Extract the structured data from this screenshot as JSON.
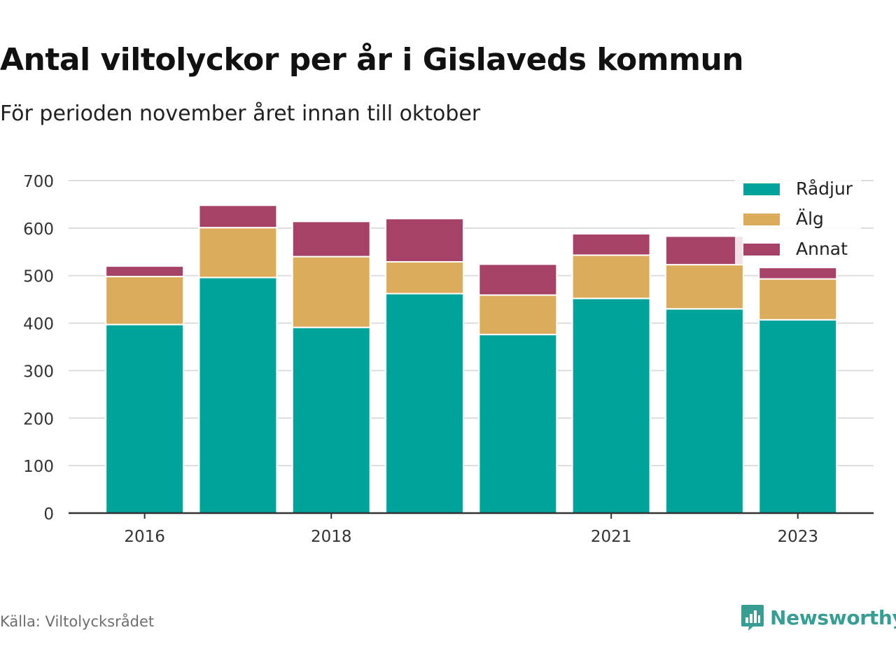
{
  "title": "Antal viltolyckor per år i Gislaveds kommun",
  "subtitle": "För perioden november året innan till oktober",
  "source": "Källa: Viltolycksrådet",
  "brand": {
    "name": "Newsworthy",
    "icon": "newsworthy-logo-icon",
    "color": "#3a9d93"
  },
  "chart_data": {
    "type": "bar",
    "stacked": true,
    "categories": [
      "2016",
      "2017",
      "2018",
      "2019",
      "2020",
      "2021",
      "2022",
      "2023"
    ],
    "x_tick_labels": [
      "2016",
      "",
      "2018",
      "",
      "",
      "2021",
      "",
      "2023"
    ],
    "series": [
      {
        "name": "Rådjur",
        "color": "#00a39a",
        "values": [
          397,
          496,
          391,
          462,
          376,
          452,
          430,
          407
        ]
      },
      {
        "name": "Älg",
        "color": "#dbac5b",
        "values": [
          101,
          105,
          149,
          67,
          83,
          91,
          93,
          86
        ]
      },
      {
        "name": "Annat",
        "color": "#a64167",
        "values": [
          22,
          47,
          74,
          91,
          65,
          45,
          60,
          24
        ]
      }
    ],
    "ylim": [
      0,
      700
    ],
    "yticks": [
      0,
      100,
      200,
      300,
      400,
      500,
      600,
      700
    ],
    "grid": true,
    "legend": "top-right",
    "xlabel": "",
    "ylabel": ""
  }
}
